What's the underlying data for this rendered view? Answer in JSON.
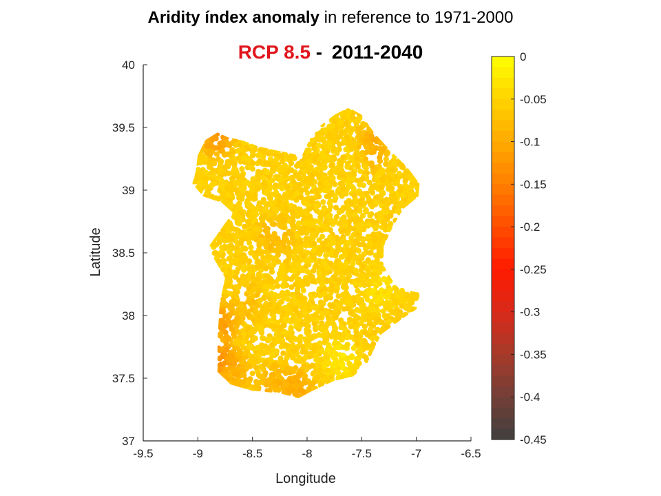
{
  "title": {
    "bold": "Aridity índex anomaly",
    "rest": " in reference to 1971-2000"
  },
  "subtitle": {
    "scenario": "RCP 8.5",
    "separator": " - ",
    "period": "2011-2040"
  },
  "chart_data": {
    "type": "scatter",
    "xlabel": "Longitude",
    "ylabel": "Latitude",
    "xlim": [
      -9.5,
      -6.5
    ],
    "ylim": [
      37,
      40
    ],
    "xticks": [
      "-9.5",
      "-9",
      "-8.5",
      "-8",
      "-7.5",
      "-7",
      "-6.5"
    ],
    "yticks": [
      "37",
      "37.5",
      "38",
      "38.5",
      "39",
      "39.5",
      "40"
    ],
    "colorbar": {
      "range": [
        -0.45,
        0
      ],
      "ticks": [
        "0",
        "-0.05",
        "-0.1",
        "-0.15",
        "-0.2",
        "-0.25",
        "-0.3",
        "-0.35",
        "-0.4",
        "-0.45"
      ],
      "colors": [
        "#ffff00",
        "#ffd400",
        "#ffaa00",
        "#ff7f00",
        "#ff4d00",
        "#ff1a00",
        "#d92a1a",
        "#a63a2a",
        "#733f36",
        "#3f3f3f"
      ]
    },
    "region": {
      "outline": [
        [
          -9.0,
          39.28
        ],
        [
          -8.93,
          39.4
        ],
        [
          -8.82,
          39.46
        ],
        [
          -8.72,
          39.42
        ],
        [
          -8.6,
          39.4
        ],
        [
          -8.45,
          39.35
        ],
        [
          -8.3,
          39.32
        ],
        [
          -8.18,
          39.3
        ],
        [
          -8.05,
          39.27
        ],
        [
          -7.98,
          39.4
        ],
        [
          -7.9,
          39.5
        ],
        [
          -7.75,
          39.6
        ],
        [
          -7.62,
          39.66
        ],
        [
          -7.5,
          39.6
        ],
        [
          -7.38,
          39.45
        ],
        [
          -7.22,
          39.3
        ],
        [
          -7.08,
          39.18
        ],
        [
          -6.97,
          39.05
        ],
        [
          -6.98,
          38.95
        ],
        [
          -7.12,
          38.85
        ],
        [
          -7.22,
          38.7
        ],
        [
          -7.3,
          38.55
        ],
        [
          -7.3,
          38.4
        ],
        [
          -7.22,
          38.28
        ],
        [
          -7.08,
          38.2
        ],
        [
          -6.96,
          38.18
        ],
        [
          -7.0,
          38.05
        ],
        [
          -7.12,
          37.98
        ],
        [
          -7.32,
          37.85
        ],
        [
          -7.45,
          37.62
        ],
        [
          -7.55,
          37.52
        ],
        [
          -7.75,
          37.48
        ],
        [
          -7.95,
          37.4
        ],
        [
          -8.08,
          37.34
        ],
        [
          -8.25,
          37.38
        ],
        [
          -8.5,
          37.4
        ],
        [
          -8.7,
          37.45
        ],
        [
          -8.82,
          37.55
        ],
        [
          -8.82,
          37.8
        ],
        [
          -8.8,
          38.1
        ],
        [
          -8.75,
          38.3
        ],
        [
          -8.85,
          38.45
        ],
        [
          -8.9,
          38.55
        ],
        [
          -8.78,
          38.7
        ],
        [
          -8.68,
          38.82
        ],
        [
          -8.78,
          38.9
        ],
        [
          -8.95,
          38.95
        ],
        [
          -9.05,
          39.05
        ],
        [
          -9.02,
          39.15
        ]
      ],
      "hotspots": [
        {
          "lon": -8.83,
          "lat": 39.43,
          "value": -0.14
        },
        {
          "lon": -7.43,
          "lat": 39.33,
          "value": -0.13
        },
        {
          "lon": -8.78,
          "lat": 37.95,
          "value": -0.13
        },
        {
          "lon": -8.8,
          "lat": 37.65,
          "value": -0.15
        },
        {
          "lon": -8.65,
          "lat": 37.55,
          "value": -0.1
        },
        {
          "lon": -8.3,
          "lat": 37.45,
          "value": -0.1
        },
        {
          "lon": -8.1,
          "lat": 37.42,
          "value": -0.11
        },
        {
          "lon": -8.3,
          "lat": 38.62,
          "value": -0.09
        },
        {
          "lon": -8.55,
          "lat": 38.1,
          "value": -0.08
        }
      ],
      "coolspots": [
        {
          "lon": -7.7,
          "lat": 37.65,
          "value": -0.02
        },
        {
          "lon": -7.3,
          "lat": 38.2,
          "value": -0.03
        },
        {
          "lon": -7.5,
          "lat": 39.3,
          "value": -0.04
        }
      ],
      "base_value": -0.055
    }
  }
}
